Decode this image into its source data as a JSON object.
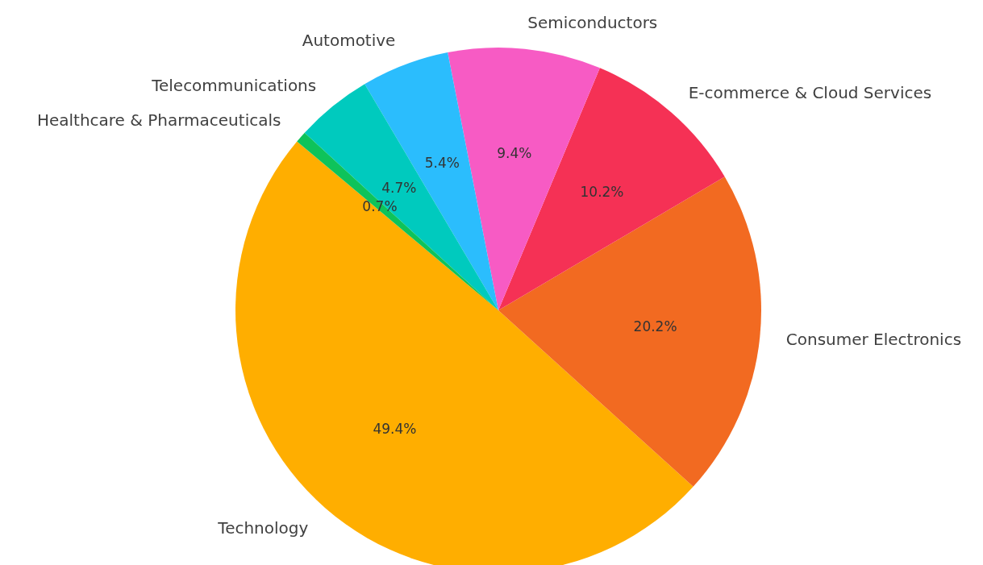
{
  "chart_data": {
    "type": "pie",
    "categories": [
      "Technology",
      "Consumer Electronics",
      "E-commerce & Cloud Services",
      "Semiconductors",
      "Automotive",
      "Telecommunications",
      "Healthcare & Pharmaceuticals"
    ],
    "values": [
      49.4,
      20.2,
      10.2,
      9.4,
      5.4,
      4.7,
      0.7
    ],
    "colors": [
      "#ffae00",
      "#f26a21",
      "#f53155",
      "#f75bc4",
      "#2bbdfd",
      "#00cabe",
      "#0ec35a"
    ],
    "value_labels": [
      "49.4%",
      "20.2%",
      "10.2%",
      "9.4%",
      "5.4%",
      "4.7%",
      "0.7%"
    ],
    "legend": false
  }
}
